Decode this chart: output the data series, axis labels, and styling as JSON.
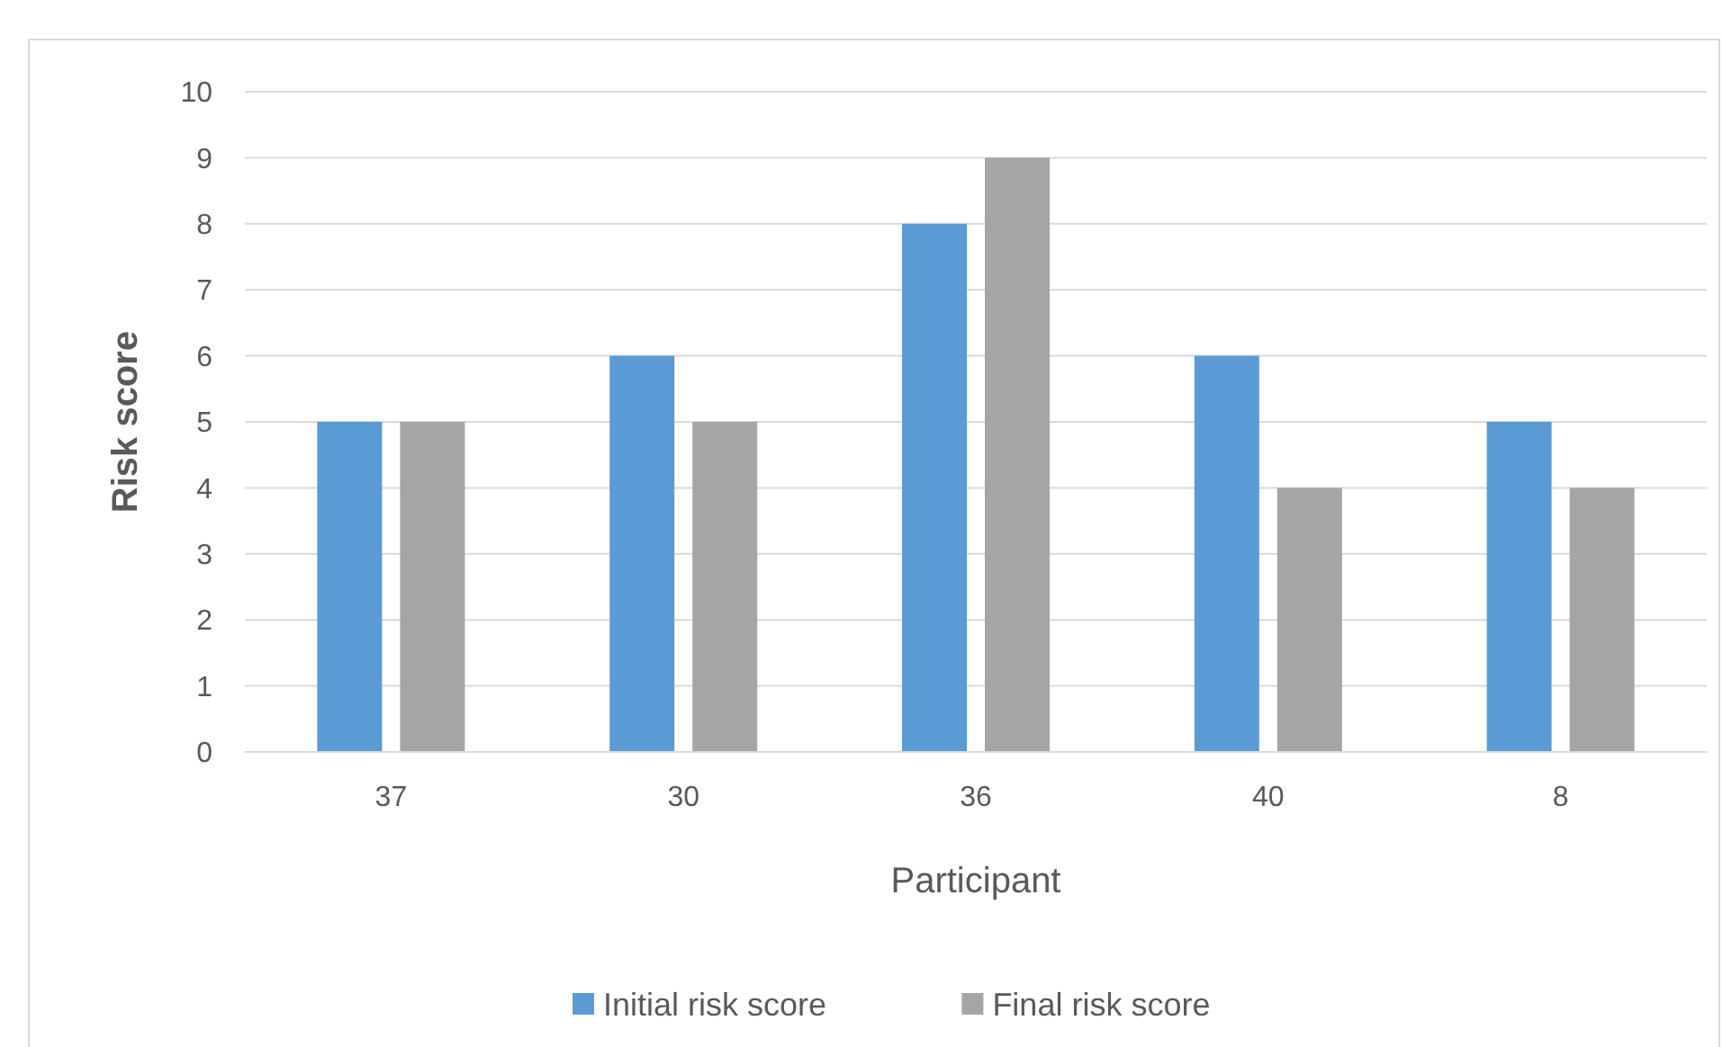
{
  "chart_data": {
    "type": "bar",
    "xlabel": "Participant",
    "ylabel": "Risk score",
    "categories": [
      "37",
      "30",
      "36",
      "40",
      "8"
    ],
    "series": [
      {
        "name": "Initial risk score",
        "color": "#5b9bd5",
        "values": [
          5,
          6,
          8,
          6,
          5
        ]
      },
      {
        "name": "Final risk score",
        "color": "#a5a5a5",
        "values": [
          5,
          5,
          9,
          4,
          4
        ]
      }
    ],
    "ylim": [
      0,
      10
    ],
    "yticks": [
      0,
      1,
      2,
      3,
      4,
      5,
      6,
      7,
      8,
      9,
      10
    ],
    "grid": "y",
    "legend": "bottom"
  }
}
